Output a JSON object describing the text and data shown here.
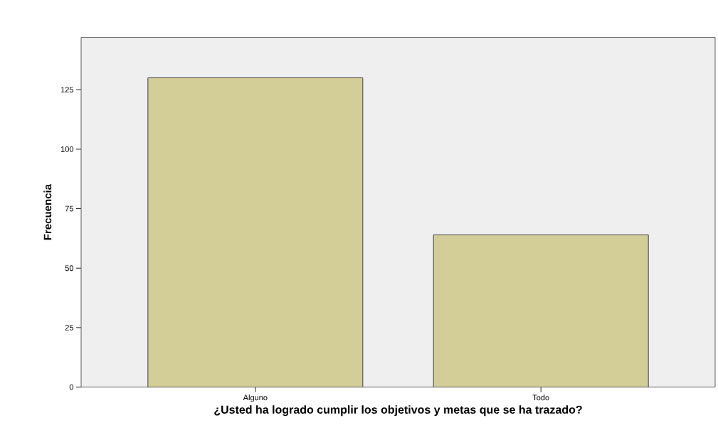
{
  "chart_data": {
    "type": "bar",
    "xlabel": "¿Usted ha logrado cumplir los objetivos y metas que se ha trazado?",
    "ylabel": "Frecuencia",
    "categories": [
      "Alguno",
      "Todo"
    ],
    "values": [
      130,
      64
    ],
    "color": "#d3cd98",
    "ylim": [
      0,
      147
    ],
    "yticks": [
      0,
      25,
      50,
      75,
      100,
      125
    ],
    "grid": false
  }
}
